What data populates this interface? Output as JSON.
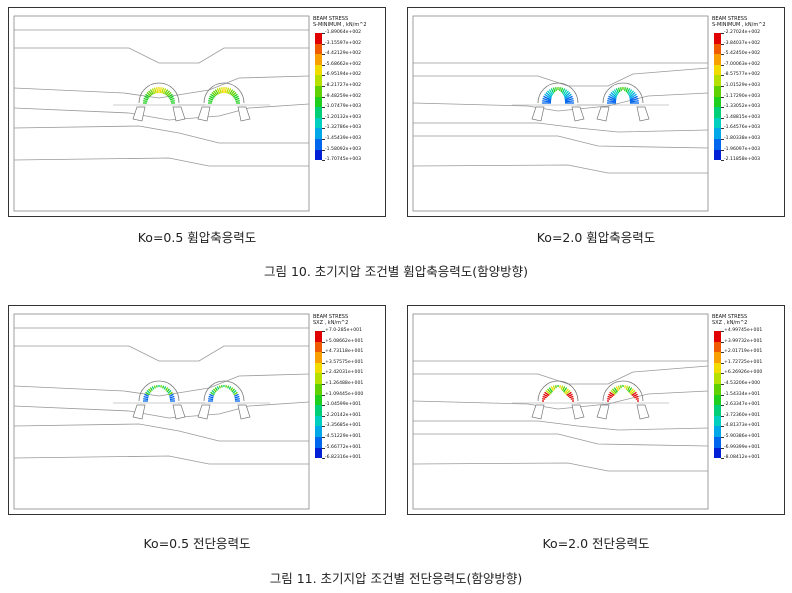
{
  "colors": {
    "scale": [
      "#e10000",
      "#f05a00",
      "#f7a000",
      "#f2dc00",
      "#b6e000",
      "#5fd000",
      "#1ecf1e",
      "#00cf78",
      "#00cfc0",
      "#00a8e8",
      "#0066ee",
      "#0020d8"
    ]
  },
  "figures": [
    {
      "id": "fig10",
      "caption": "그림 10. 초기지압 조건별 휨압축응력도(함양방향)",
      "panels": [
        {
          "caption": "Ko=0.5 휨압축응력도",
          "legend_title": "BEAM STRESS",
          "legend_subtitle": "S-MINIMUM , kN/m^2",
          "legend_values": [
            "-1.89064e+002",
            "-3.15597e+002",
            "-4.42129e+002",
            "-5.68662e+002",
            "-6.95194e+002",
            "-8.21727e+002",
            "-9.48259e+002",
            "-1.07479e+003",
            "-1.20132e+003",
            "-1.32786e+003",
            "-1.45439e+003",
            "-1.58092e+003",
            "-1.70745e+003"
          ]
        },
        {
          "caption": "Ko=2.0 휨압축응력도",
          "legend_title": "BEAM STRESS",
          "legend_subtitle": "S-MINIMUM , kN/m^2",
          "legend_values": [
            "-2.27024e+002",
            "-3.84037e+002",
            "-5.42450e+002",
            "-7.00063e+002",
            "-8.57577e+002",
            "-1.01529e+003",
            "-1.17290e+003",
            "-1.33052e+003",
            "-1.48815e+003",
            "-1.64576e+003",
            "-1.80338e+003",
            "-1.96097e+003",
            "-2.11858e+003"
          ]
        }
      ]
    },
    {
      "id": "fig11",
      "caption": "그림 11. 초기지압 조건별 전단응력도(함양방향)",
      "panels": [
        {
          "caption": "Ko=0.5 전단응력도",
          "legend_title": "BEAM STRESS",
          "legend_subtitle": "SXZ , kN/m^2",
          "legend_values": [
            "+7.0-285e+001",
            "+5.08662e+001",
            "+4.73118e+001",
            "+3.57575e+001",
            "+2.42031e+001",
            "+1.26488e+001",
            "+1.09445e+000",
            "-1.04599e+001",
            "-2.20142e+001",
            "-3.35685e+001",
            "-4.51229e+001",
            "-5.66772e+001",
            "-6.82316e+001"
          ]
        },
        {
          "caption": "Ko=2.0 전단응력도",
          "legend_title": "BEAM STRESS",
          "legend_subtitle": "SXZ , kN/m^2",
          "legend_values": [
            "+4.99745e+001",
            "+3.99732e+001",
            "+2.01719e+001",
            "+1.72725e+001",
            "+6.26926e+000",
            "-4.53206e+000",
            "-1.54334e+001",
            "-2.63347e+001",
            "-3.72360e+001",
            "-4.81373e+001",
            "-5.90386e+001",
            "-6.99399e+001",
            "-8.08412e+001"
          ]
        }
      ]
    }
  ]
}
